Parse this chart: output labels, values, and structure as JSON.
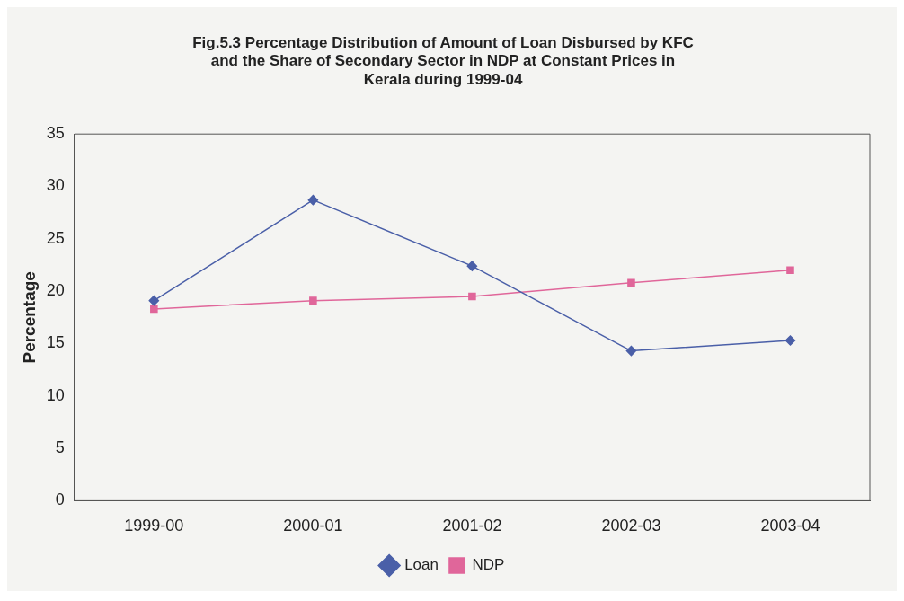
{
  "chart_data": {
    "type": "line",
    "title": "Fig.5.3 Percentage Distribution of Amount of Loan Disbursed by KFC and the Share of Secondary Sector in NDP at Constant Prices in Kerala during 1999-04",
    "ylabel": "Percentage",
    "categories": [
      "1999-00",
      "2000-01",
      "2001-02",
      "2002-03",
      "2003-04"
    ],
    "series": [
      {
        "name": "Loan",
        "color": "#4a5fa8",
        "marker": "diamond",
        "values": [
          19.1,
          28.7,
          22.4,
          14.3,
          15.3
        ]
      },
      {
        "name": "NDP",
        "color": "#e0669a",
        "marker": "square",
        "values": [
          18.3,
          19.1,
          19.5,
          20.8,
          22.0
        ]
      }
    ],
    "ylim": [
      0,
      35
    ],
    "yticks": [
      0,
      5,
      10,
      15,
      20,
      25,
      30,
      35
    ],
    "grid": false,
    "legend": "bottom"
  }
}
